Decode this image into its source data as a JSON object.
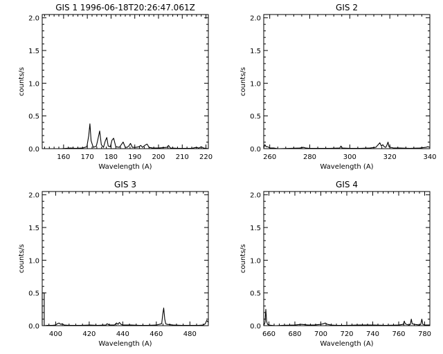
{
  "chart_data": [
    {
      "type": "line",
      "title": "GIS 1 1996-06-18T20:26:47.061Z",
      "xlabel": "Wavelength (A)",
      "ylabel": "counts/s",
      "xlim": [
        151,
        221
      ],
      "ylim": [
        0,
        2.05
      ],
      "xticks": [
        160,
        170,
        180,
        190,
        200,
        210,
        220
      ],
      "yticks": [
        0.0,
        0.5,
        1.0,
        1.5,
        2.0
      ],
      "ytick_labels": [
        "0.0",
        "0.5",
        "1.0",
        "1.5",
        "2.0"
      ],
      "grid": false,
      "series": [
        {
          "x": [
            151,
            159,
            163,
            165,
            168,
            169.8,
            170.6,
            171.1,
            171.6,
            172.5,
            173.8,
            174.5,
            175.2,
            175.9,
            176.8,
            177.6,
            178.2,
            178.8,
            179.7,
            180.4,
            181.1,
            182,
            183.5,
            184.3,
            185.1,
            186,
            186.8,
            187.5,
            188.2,
            189,
            190.5,
            191.8,
            192.5,
            193.3,
            194.2,
            195.2,
            196,
            197.5,
            200,
            203.6,
            204.2,
            205,
            208,
            214,
            216,
            217,
            218,
            219,
            221
          ],
          "y": [
            0.0,
            0.0,
            0.01,
            0.005,
            0.01,
            0.03,
            0.2,
            0.38,
            0.12,
            0.02,
            0.04,
            0.15,
            0.27,
            0.06,
            0.02,
            0.12,
            0.17,
            0.04,
            0.03,
            0.13,
            0.16,
            0.03,
            0.02,
            0.06,
            0.1,
            0.02,
            0.02,
            0.04,
            0.08,
            0.02,
            0.02,
            0.03,
            0.05,
            0.02,
            0.05,
            0.07,
            0.02,
            0.01,
            0.01,
            0.02,
            0.05,
            0.01,
            0.005,
            0.005,
            0.02,
            0.01,
            0.03,
            0.01,
            0.0
          ]
        }
      ]
    },
    {
      "type": "line",
      "title": "GIS 2",
      "xlabel": "Wavelength (A)",
      "ylabel": "counts/s",
      "xlim": [
        257,
        340
      ],
      "ylim": [
        0,
        2.05
      ],
      "xticks": [
        260,
        280,
        300,
        320,
        340
      ],
      "yticks": [
        0.0,
        0.5,
        1.0,
        1.5,
        2.0
      ],
      "ytick_labels": [
        "0.0",
        "0.5",
        "1.0",
        "1.5",
        "2.0"
      ],
      "grid": false,
      "series": [
        {
          "x": [
            257,
            257.6,
            258.2,
            259,
            260,
            262,
            264,
            270,
            275,
            277,
            278,
            280,
            285,
            290,
            295,
            295.6,
            296.2,
            300,
            305,
            310,
            313,
            314.2,
            315,
            315.8,
            316.5,
            317.2,
            318,
            318.5,
            319.1,
            319.6,
            320.5,
            322,
            325,
            330,
            335,
            338,
            339,
            340
          ],
          "y": [
            0.01,
            0.06,
            0.03,
            0.03,
            0.01,
            0.01,
            0.0,
            0.005,
            0.01,
            0.02,
            0.01,
            0.005,
            0.005,
            0.005,
            0.01,
            0.04,
            0.01,
            0.005,
            0.005,
            0.01,
            0.02,
            0.06,
            0.09,
            0.04,
            0.06,
            0.03,
            0.02,
            0.05,
            0.1,
            0.03,
            0.02,
            0.01,
            0.01,
            0.005,
            0.01,
            0.02,
            0.03,
            0.02
          ]
        }
      ]
    },
    {
      "type": "line",
      "title": "GIS 3",
      "xlabel": "Wavelength (A)",
      "ylabel": "counts/s",
      "xlim": [
        392,
        491
      ],
      "ylim": [
        0,
        2.05
      ],
      "xticks": [
        400,
        420,
        440,
        460,
        480
      ],
      "yticks": [
        0.0,
        0.5,
        1.0,
        1.5,
        2.0
      ],
      "ytick_labels": [
        "0.0",
        "0.5",
        "1.0",
        "1.5",
        "2.0"
      ],
      "grid": false,
      "series": [
        {
          "x": [
            392,
            392,
            393.2,
            393.2,
            395,
            398,
            400,
            401,
            402,
            403,
            404,
            405,
            408,
            415,
            420,
            425,
            430,
            430.6,
            431.3,
            432,
            435,
            436.3,
            437.2,
            438,
            439,
            440,
            442,
            445,
            450,
            455,
            460,
            463.2,
            463.8,
            464.4,
            465,
            465.6,
            466.4,
            470,
            475,
            480,
            485,
            488,
            489.2,
            490,
            491
          ],
          "y": [
            0.0,
            0.5,
            0.5,
            0.0,
            0.005,
            0.005,
            0.01,
            0.03,
            0.04,
            0.02,
            0.03,
            0.01,
            0.005,
            0.005,
            0.01,
            0.005,
            0.01,
            0.03,
            0.02,
            0.01,
            0.01,
            0.04,
            0.02,
            0.05,
            0.02,
            0.01,
            0.01,
            0.01,
            0.005,
            0.005,
            0.01,
            0.03,
            0.17,
            0.27,
            0.1,
            0.03,
            0.02,
            0.01,
            0.005,
            0.005,
            0.005,
            0.01,
            0.03,
            0.08,
            0.05
          ]
        }
      ]
    },
    {
      "type": "line",
      "title": "GIS 4",
      "xlabel": "Wavelength (A)",
      "ylabel": "counts/s",
      "xlim": [
        656,
        784
      ],
      "ylim": [
        0,
        2.05
      ],
      "xticks": [
        660,
        680,
        700,
        720,
        740,
        760,
        780
      ],
      "yticks": [
        0.0,
        0.5,
        1.0,
        1.5,
        2.0
      ],
      "ytick_labels": [
        "0.0",
        "0.5",
        "1.0",
        "1.5",
        "2.0"
      ],
      "grid": false,
      "series": [
        {
          "x": [
            656,
            657,
            657.6,
            658.2,
            659,
            660,
            662,
            665,
            670,
            680,
            685,
            690,
            695,
            700,
            702,
            703.5,
            705,
            708,
            712,
            720,
            730,
            740,
            750,
            760,
            763.5,
            764.3,
            765,
            766,
            768,
            769,
            769.7,
            770.4,
            772,
            776,
            777,
            777.8,
            778.6,
            780,
            784
          ],
          "y": [
            0.0,
            0.05,
            0.25,
            0.07,
            0.02,
            0.01,
            0.005,
            0.0,
            0.005,
            0.01,
            0.02,
            0.01,
            0.01,
            0.02,
            0.03,
            0.04,
            0.02,
            0.01,
            0.005,
            0.005,
            0.01,
            0.01,
            0.005,
            0.01,
            0.02,
            0.07,
            0.03,
            0.02,
            0.01,
            0.02,
            0.1,
            0.03,
            0.02,
            0.01,
            0.02,
            0.1,
            0.02,
            0.01,
            0.01
          ]
        }
      ]
    }
  ]
}
